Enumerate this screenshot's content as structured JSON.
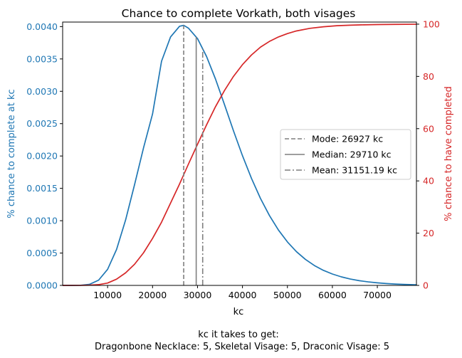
{
  "chart_data": {
    "type": "line",
    "title": "Chance to complete Vorkath, both visages",
    "xlabel": "kc",
    "ylabel_left": "% chance to complete at kc",
    "ylabel_right": "% chance to have completed",
    "caption_line1": "kc it takes to get:",
    "caption_line2": "Dragonbone Necklace: 5,  Skeletal Visage: 5,  Draconic Visage: 5",
    "xlim": [
      0,
      78700
    ],
    "ylim_left": [
      0,
      0.00407
    ],
    "ylim_right": [
      0,
      100.8
    ],
    "x_ticks": [
      10000,
      20000,
      30000,
      40000,
      50000,
      60000,
      70000
    ],
    "x_tick_labels": [
      "10000",
      "20000",
      "30000",
      "40000",
      "50000",
      "60000",
      "70000"
    ],
    "y_left_ticks": [
      0,
      0.0005,
      0.001,
      0.0015,
      0.002,
      0.0025,
      0.003,
      0.0035,
      0.004
    ],
    "y_left_tick_labels": [
      "0.0000",
      "0.0005",
      "0.0010",
      "0.0015",
      "0.0020",
      "0.0025",
      "0.0030",
      "0.0035",
      "0.0040"
    ],
    "y_right_ticks": [
      0,
      20,
      40,
      60,
      80,
      100
    ],
    "y_right_tick_labels": [
      "0",
      "20",
      "40",
      "60",
      "80",
      "100"
    ],
    "colors": {
      "left_axis": "#1f77b4",
      "right_axis": "#d62728",
      "pdf_line": "#1f77b4",
      "cdf_line": "#d62728",
      "stat_lines": "#7f7f7f"
    },
    "series": [
      {
        "axis": "left",
        "color": "#1f77b4",
        "x": [
          0,
          2000,
          4000,
          6000,
          8000,
          10000,
          12000,
          14000,
          16000,
          18000,
          20000,
          22000,
          24000,
          26000,
          26927,
          28000,
          30000,
          32000,
          34000,
          36000,
          38000,
          40000,
          42000,
          44000,
          46000,
          48000,
          50000,
          52000,
          54000,
          56000,
          58000,
          60000,
          62000,
          64000,
          66000,
          68000,
          70000,
          72000,
          74000,
          76000,
          78700
        ],
        "y": [
          0,
          1e-07,
          2e-06,
          1.75e-05,
          8.13e-05,
          0.000248,
          0.000557,
          0.00101,
          0.001558,
          0.002128,
          0.00265,
          0.003465,
          0.00384,
          0.004005,
          0.00402,
          0.003975,
          0.003815,
          0.00354,
          0.00319,
          0.002795,
          0.00239,
          0.002005,
          0.001655,
          0.001345,
          0.00108,
          0.000856,
          0.000672,
          0.000522,
          0.000402,
          0.000307,
          0.000233,
          0.000176,
          0.000132,
          9.8e-05,
          7.3e-05,
          5.4e-05,
          4e-05,
          2.9e-05,
          2.1e-05,
          1.5e-05,
          1e-05
        ]
      },
      {
        "axis": "right",
        "color": "#d62728",
        "x": [
          0,
          4000,
          6000,
          8000,
          10000,
          12000,
          14000,
          16000,
          18000,
          20000,
          22000,
          24000,
          26000,
          28000,
          30000,
          32000,
          34000,
          36000,
          38000,
          40000,
          42000,
          44000,
          46000,
          48000,
          50000,
          52000,
          55000,
          58000,
          61000,
          64000,
          67000,
          70000,
          74000,
          78700
        ],
        "y": [
          0,
          0.02,
          0.1,
          0.3,
          0.9,
          2.4,
          4.8,
          8.1,
          12.5,
          18.0,
          24.2,
          31.5,
          38.8,
          46.5,
          54.0,
          61.4,
          68.4,
          74.6,
          80.0,
          84.5,
          88.2,
          91.2,
          93.4,
          95.1,
          96.4,
          97.4,
          98.4,
          99.0,
          99.4,
          99.6,
          99.75,
          99.85,
          99.92,
          99.96
        ]
      }
    ],
    "vlines": [
      {
        "name": "Mode",
        "x": 26927,
        "style": "dashed",
        "label": "Mode: 26927 kc"
      },
      {
        "name": "Median",
        "x": 29710,
        "style": "solid",
        "label": "Median: 29710 kc"
      },
      {
        "name": "Mean",
        "x": 31151.19,
        "style": "dashdot",
        "label": "Mean: 31151.19 kc"
      }
    ],
    "legend_placement": "center-right",
    "grid": false
  }
}
